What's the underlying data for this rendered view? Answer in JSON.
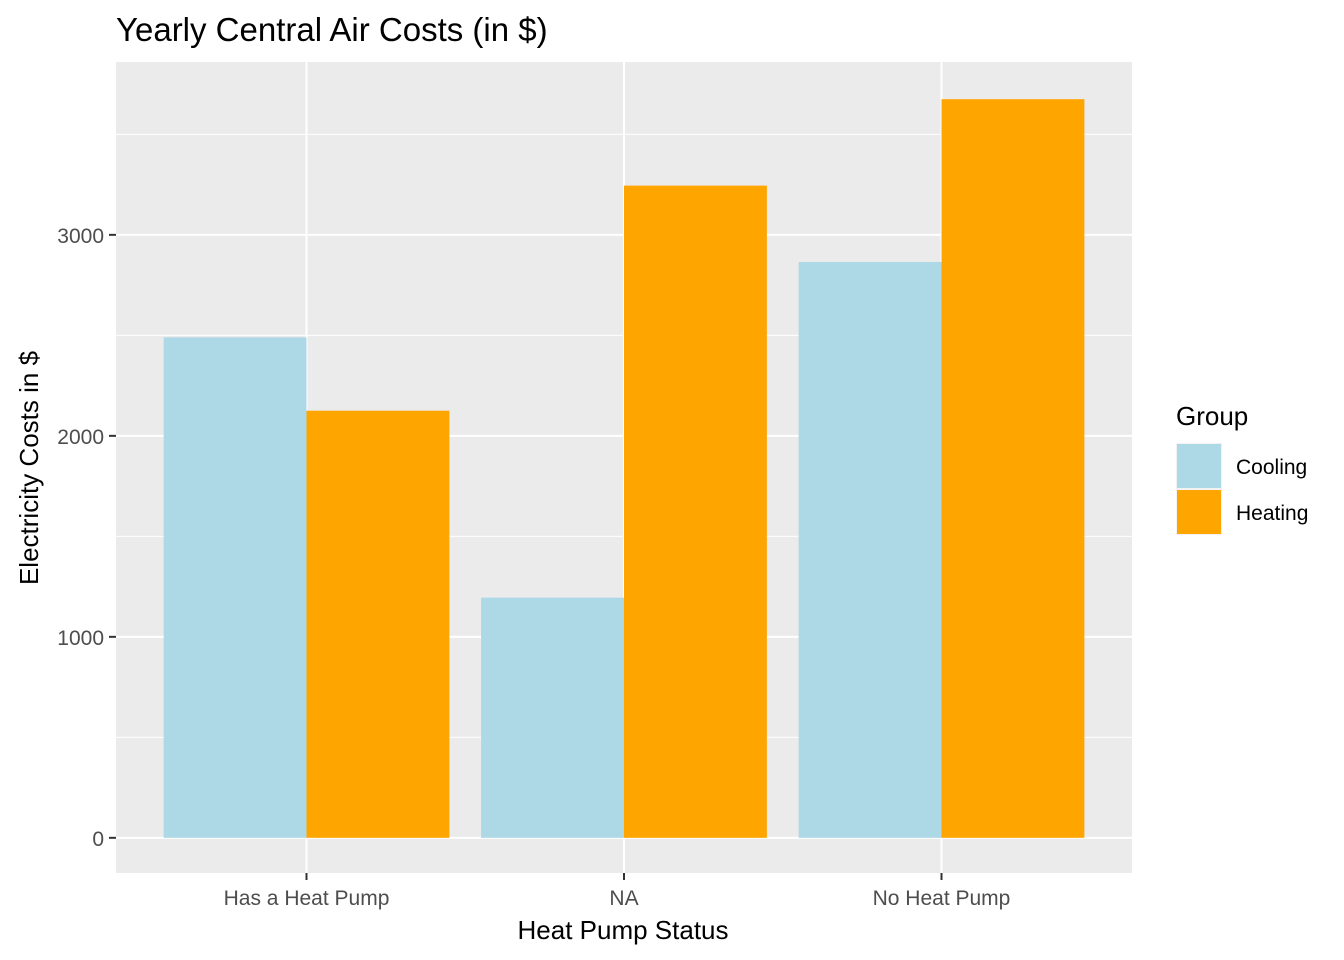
{
  "chart_data": {
    "type": "bar",
    "title": "Yearly Central Air Costs (in $)",
    "xlabel": "Heat Pump Status",
    "ylabel": "Electricity Costs in $",
    "categories": [
      "Has a Heat Pump",
      "NA",
      "No Heat Pump"
    ],
    "series": [
      {
        "name": "Cooling",
        "color": "#ADD8E6",
        "values": [
          2490,
          1195,
          2865
        ]
      },
      {
        "name": "Heating",
        "color": "#FFA500",
        "values": [
          2125,
          3245,
          3675
        ]
      }
    ],
    "ylim": [
      -175,
      3860
    ],
    "yticks": [
      0,
      1000,
      2000,
      3000
    ],
    "ytick_labels": [
      "0",
      "1000",
      "2000",
      "3000"
    ],
    "grid": true,
    "legend": {
      "title": "Group",
      "position": "right"
    }
  }
}
